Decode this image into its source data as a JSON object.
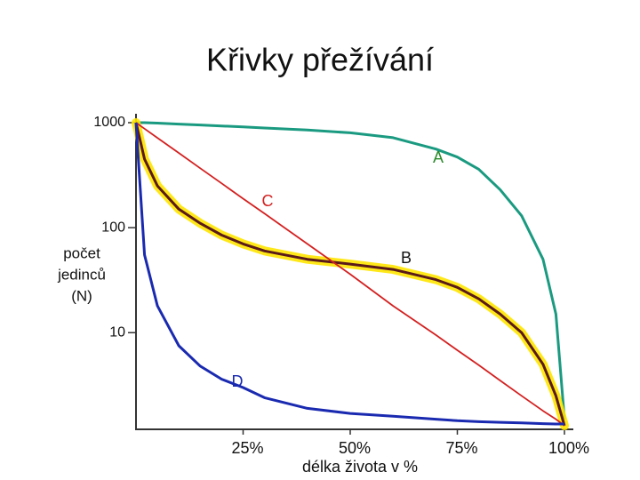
{
  "chart_data": {
    "type": "line",
    "title": "Křivky přežívání",
    "x": [
      0,
      2,
      5,
      10,
      15,
      20,
      25,
      30,
      40,
      50,
      60,
      70,
      75,
      80,
      85,
      90,
      95,
      98,
      100
    ],
    "series": [
      {
        "name": "A",
        "color": "#1a9a80",
        "values": [
          1000,
          1000,
          990,
          970,
          950,
          930,
          910,
          890,
          850,
          800,
          720,
          560,
          470,
          360,
          230,
          130,
          50,
          15,
          1.5
        ]
      },
      {
        "name": "B",
        "color": "#5a1a1a",
        "values": [
          1000,
          450,
          250,
          150,
          110,
          85,
          70,
          60,
          50,
          45,
          40,
          32,
          27,
          21,
          15,
          10,
          5,
          2.5,
          1.3
        ]
      },
      {
        "name": "C",
        "color": "#d42020",
        "values": [
          1000,
          875,
          717,
          514,
          368,
          264,
          189,
          136,
          70,
          36,
          18,
          9.5,
          6.8,
          4.9,
          3.5,
          2.5,
          1.8,
          1.5,
          1.3
        ]
      },
      {
        "name": "D",
        "color": "#1a2ab0",
        "values": [
          1000,
          55,
          18,
          7.5,
          4.8,
          3.6,
          3,
          2.4,
          1.9,
          1.7,
          1.6,
          1.5,
          1.45,
          1.42,
          1.4,
          1.38,
          1.36,
          1.35,
          1.35
        ]
      }
    ],
    "xlim": [
      0,
      100
    ],
    "xticks": [
      {
        "value": 25,
        "label": "25%"
      },
      {
        "value": 50,
        "label": "50%"
      },
      {
        "value": 75,
        "label": "75%"
      },
      {
        "value": 100,
        "label": "100%"
      }
    ],
    "ylim": [
      1.2,
      1000
    ],
    "yticks": [
      10,
      100,
      1000
    ],
    "log_y": true,
    "grid": false,
    "xlabel": "délka života v %",
    "ylabel": [
      "počet",
      "jedinců",
      "(N)"
    ]
  }
}
